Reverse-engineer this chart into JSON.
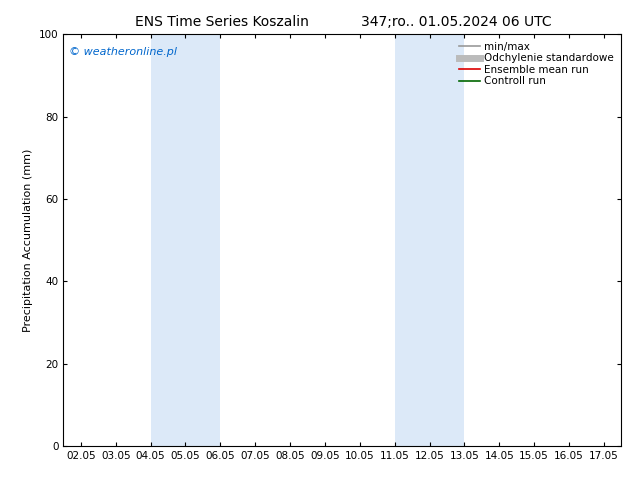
{
  "title_left": "ENS Time Series Koszalin",
  "title_right": "347;ro.. 01.05.2024 06 UTC",
  "ylabel": "Precipitation Accumulation (mm)",
  "ylim": [
    0,
    100
  ],
  "yticks": [
    0,
    20,
    40,
    60,
    80,
    100
  ],
  "xlim": [
    1.5,
    17.5
  ],
  "xtick_labels": [
    "02.05",
    "03.05",
    "04.05",
    "05.05",
    "06.05",
    "07.05",
    "08.05",
    "09.05",
    "10.05",
    "11.05",
    "12.05",
    "13.05",
    "14.05",
    "15.05",
    "16.05",
    "17.05"
  ],
  "xtick_positions": [
    2,
    3,
    4,
    5,
    6,
    7,
    8,
    9,
    10,
    11,
    12,
    13,
    14,
    15,
    16,
    17
  ],
  "shaded_regions": [
    {
      "xmin": 4.0,
      "xmax": 6.0
    },
    {
      "xmin": 11.0,
      "xmax": 13.0
    }
  ],
  "shade_color": "#dce9f8",
  "watermark": "© weatheronline.pl",
  "watermark_color": "#0066cc",
  "legend_items": [
    {
      "label": "min/max",
      "color": "#999999",
      "lw": 1.2,
      "ls": "-"
    },
    {
      "label": "Odchylenie standardowe",
      "color": "#bbbbbb",
      "lw": 5,
      "ls": "-"
    },
    {
      "label": "Ensemble mean run",
      "color": "#dd0000",
      "lw": 1.2,
      "ls": "-"
    },
    {
      "label": "Controll run",
      "color": "#006600",
      "lw": 1.2,
      "ls": "-"
    }
  ],
  "background_color": "#ffffff",
  "title_fontsize": 10,
  "label_fontsize": 8,
  "tick_fontsize": 7.5,
  "legend_fontsize": 7.5,
  "watermark_fontsize": 8
}
